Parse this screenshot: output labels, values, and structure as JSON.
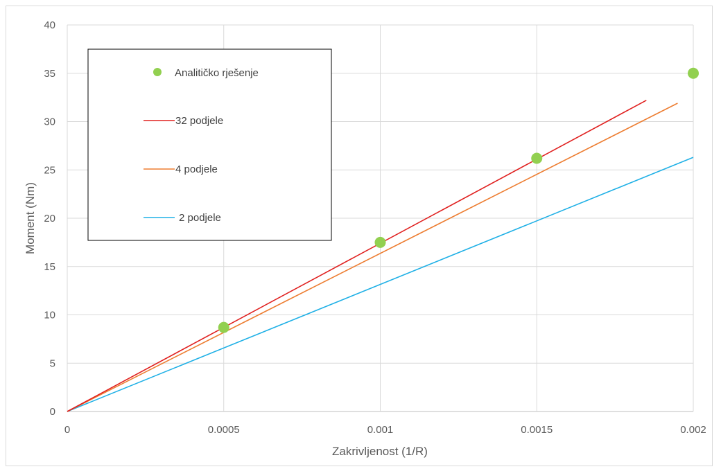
{
  "chart_data": {
    "type": "line",
    "xlabel": "Zakrivljenost (1/R)",
    "ylabel": "Moment (Nm)",
    "xlim": [
      0,
      0.002
    ],
    "ylim": [
      0,
      40
    ],
    "x_ticks": [
      0,
      0.0005,
      0.001,
      0.0015,
      0.002
    ],
    "x_tick_labels": [
      "0",
      "0.0005",
      "0.001",
      "0.0015",
      "0.002"
    ],
    "y_ticks": [
      0,
      5,
      10,
      15,
      20,
      25,
      30,
      35,
      40
    ],
    "y_tick_labels": [
      "0",
      "5",
      "10",
      "15",
      "20",
      "25",
      "30",
      "35",
      "40"
    ],
    "grid": true,
    "legend_position": "top-left",
    "series": [
      {
        "name": "Analitičko rješenje",
        "kind": "scatter",
        "color": "#92d050",
        "x": [
          0.0005,
          0.001,
          0.0015,
          0.002
        ],
        "y": [
          8.7,
          17.5,
          26.2,
          35.0
        ]
      },
      {
        "name": "32 podjele",
        "kind": "line",
        "color": "#e0201f",
        "x": [
          0,
          0.00185
        ],
        "y": [
          0,
          32.2
        ]
      },
      {
        "name": "4 podjele",
        "kind": "line",
        "color": "#ed7d31",
        "x": [
          0,
          0.00195
        ],
        "y": [
          0,
          31.9
        ]
      },
      {
        "name": "2 podjele",
        "kind": "line",
        "color": "#1fb0e6",
        "x": [
          0,
          0.002
        ],
        "y": [
          0,
          26.3
        ]
      }
    ]
  }
}
